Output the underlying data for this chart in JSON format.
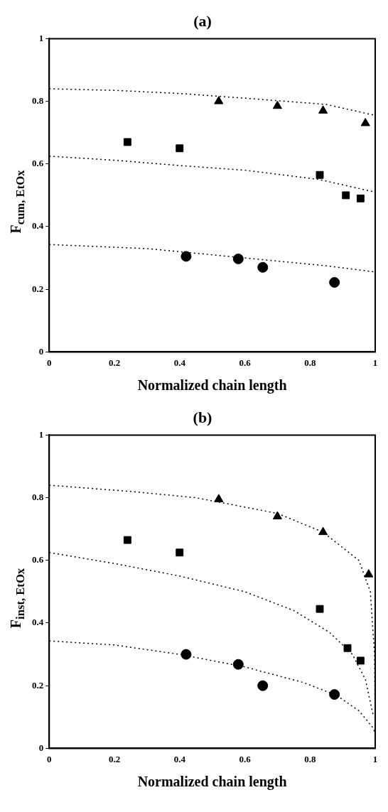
{
  "chart_data": [
    {
      "type": "scatter",
      "title": "(a)",
      "xlabel": "Normalized chain length",
      "ylabel": "F$_{cum, EtOx}$",
      "xlim": [
        0,
        1
      ],
      "ylim": [
        0,
        1
      ],
      "xticks": [
        0,
        0.2,
        0.4,
        0.6,
        0.8,
        1
      ],
      "yticks": [
        0,
        0.2,
        0.4,
        0.6,
        0.8,
        1
      ],
      "grid": false,
      "legend": false,
      "series": [
        {
          "color": "#000000",
          "marker": "triangle",
          "x": [
            0.52,
            0.7,
            0.84,
            0.97
          ],
          "values": [
            0.8,
            0.785,
            0.77,
            0.73
          ]
        },
        {
          "color": "#000000",
          "marker": "square",
          "x": [
            0.24,
            0.4,
            0.83,
            0.91,
            0.955
          ],
          "values": [
            0.67,
            0.65,
            0.565,
            0.5,
            0.49
          ]
        },
        {
          "color": "#000000",
          "marker": "circle",
          "x": [
            0.42,
            0.58,
            0.655,
            0.875
          ],
          "values": [
            0.305,
            0.297,
            0.27,
            0.222
          ]
        },
        {
          "type": "line",
          "color": "#000000",
          "marker": "none",
          "line_style": "dotted",
          "x": [
            0,
            0.2,
            0.4,
            0.6,
            0.85,
            1
          ],
          "values": [
            0.84,
            0.835,
            0.825,
            0.81,
            0.79,
            0.755
          ]
        },
        {
          "type": "line",
          "color": "#000000",
          "marker": "none",
          "line_style": "dotted",
          "x": [
            0,
            0.2,
            0.4,
            0.6,
            0.83,
            1
          ],
          "values": [
            0.625,
            0.612,
            0.595,
            0.58,
            0.55,
            0.51
          ]
        },
        {
          "type": "line",
          "color": "#000000",
          "marker": "none",
          "line_style": "dotted",
          "x": [
            0,
            0.3,
            0.5,
            0.7,
            0.85,
            1
          ],
          "values": [
            0.343,
            0.33,
            0.31,
            0.29,
            0.275,
            0.255
          ]
        }
      ]
    },
    {
      "type": "scatter",
      "title": "(b)",
      "xlabel": "Normalized chain length",
      "ylabel": "F$_{inst, EtOx}$",
      "xlim": [
        0,
        1
      ],
      "ylim": [
        0,
        1
      ],
      "xticks": [
        0,
        0.2,
        0.4,
        0.6,
        0.8,
        1
      ],
      "yticks": [
        0,
        0.2,
        0.4,
        0.6,
        0.8,
        1
      ],
      "grid": false,
      "legend": false,
      "series": [
        {
          "color": "#000000",
          "marker": "triangle",
          "x": [
            0.52,
            0.7,
            0.84,
            0.98
          ],
          "values": [
            0.795,
            0.74,
            0.69,
            0.555
          ]
        },
        {
          "color": "#000000",
          "marker": "square",
          "x": [
            0.24,
            0.4,
            0.83,
            0.915,
            0.955
          ],
          "values": [
            0.665,
            0.625,
            0.445,
            0.32,
            0.28
          ]
        },
        {
          "color": "#000000",
          "marker": "circle",
          "x": [
            0.42,
            0.58,
            0.655,
            0.875
          ],
          "values": [
            0.3,
            0.268,
            0.2,
            0.172
          ]
        },
        {
          "type": "line",
          "color": "#000000",
          "marker": "none",
          "line_style": "dotted",
          "x": [
            0,
            0.25,
            0.45,
            0.7,
            0.84,
            0.95,
            0.985,
            0.998,
            1
          ],
          "values": [
            0.84,
            0.82,
            0.8,
            0.75,
            0.69,
            0.6,
            0.5,
            0.3,
            0.05
          ]
        },
        {
          "type": "line",
          "color": "#000000",
          "marker": "none",
          "line_style": "dotted",
          "x": [
            0,
            0.2,
            0.4,
            0.6,
            0.75,
            0.86,
            0.93,
            0.97,
            0.995
          ],
          "values": [
            0.625,
            0.59,
            0.55,
            0.5,
            0.44,
            0.37,
            0.3,
            0.22,
            0.1
          ]
        },
        {
          "type": "line",
          "color": "#000000",
          "marker": "none",
          "line_style": "dotted",
          "x": [
            0,
            0.2,
            0.4,
            0.6,
            0.78,
            0.88,
            0.95,
            0.99,
            1
          ],
          "values": [
            0.343,
            0.33,
            0.3,
            0.26,
            0.21,
            0.17,
            0.12,
            0.07,
            0.05
          ]
        }
      ]
    }
  ]
}
